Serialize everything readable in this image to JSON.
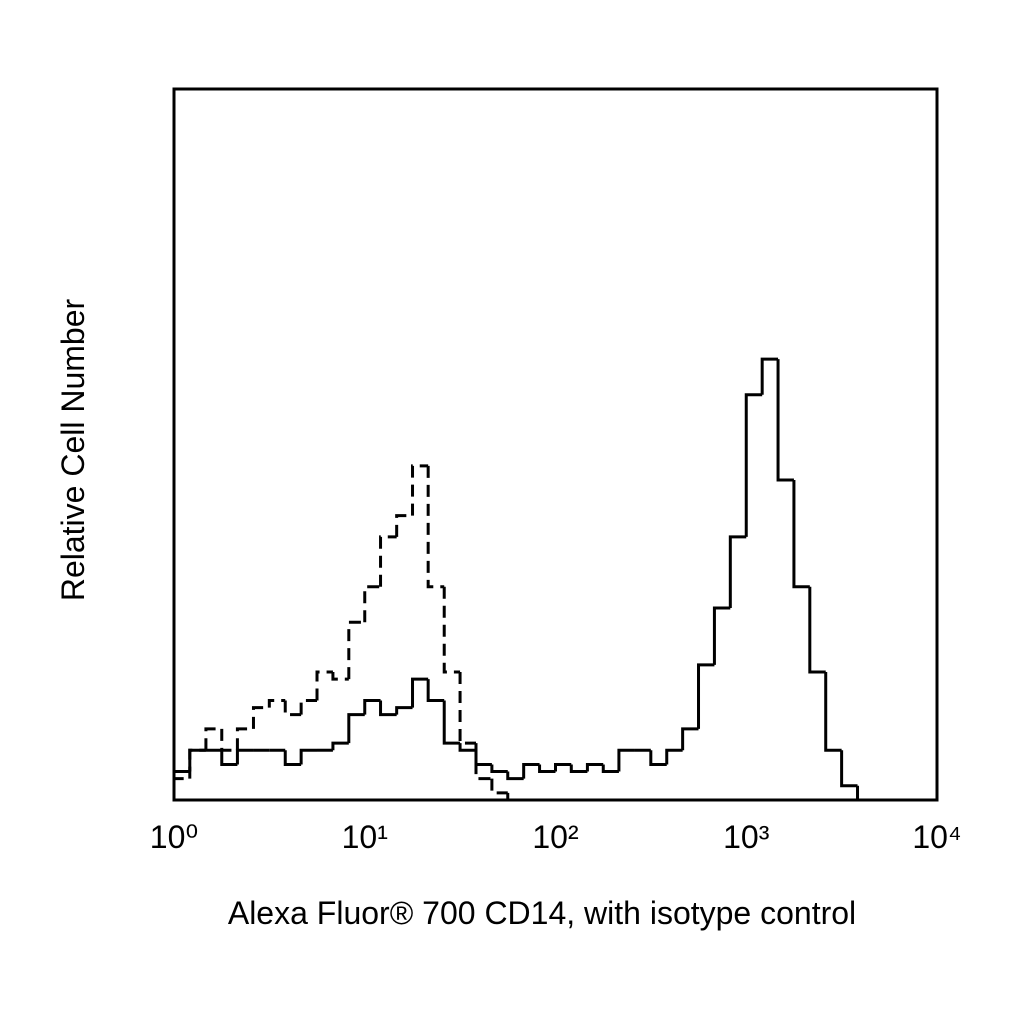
{
  "chart_data": {
    "type": "histogram",
    "xlabel": "Alexa Fluor® 700 CD14, with isotype control",
    "ylabel": "Relative Cell Number",
    "xscale": "log",
    "xlim": [
      1,
      10000
    ],
    "xticks": [
      {
        "value": 1,
        "label": "10⁰"
      },
      {
        "value": 10,
        "label": "10¹"
      },
      {
        "value": 100,
        "label": "10²"
      },
      {
        "value": 1000,
        "label": "10³"
      },
      {
        "value": 10000,
        "label": "10⁴"
      }
    ],
    "ylim": [
      0,
      100
    ],
    "bins": [
      1,
      1.21,
      1.47,
      1.78,
      2.15,
      2.61,
      3.16,
      3.83,
      4.64,
      5.62,
      6.81,
      8.25,
      10,
      12.1,
      14.7,
      17.8,
      21.5,
      26.1,
      31.6,
      38.3,
      46.4,
      56.2,
      68.1,
      82.5,
      100,
      121,
      147,
      178,
      215,
      261,
      316,
      383,
      464,
      562,
      681,
      825,
      1000,
      1212,
      1468,
      1778,
      2154,
      2610,
      3162,
      3831,
      4642,
      5623,
      6813,
      8254,
      10000
    ],
    "series": [
      {
        "color": "#000000",
        "style": "solid",
        "values": [
          4,
          7,
          7,
          5,
          7,
          7,
          7,
          5,
          7,
          7,
          8,
          12,
          14,
          12,
          13,
          17,
          14,
          8,
          7,
          5,
          4,
          3,
          5,
          4,
          5,
          4,
          5,
          4,
          7,
          7,
          5,
          7,
          10,
          19,
          27,
          37,
          57,
          62,
          45,
          30,
          18,
          7,
          2,
          0,
          0,
          0,
          0,
          0
        ]
      },
      {
        "color": "#000000",
        "style": "dashed",
        "values": [
          3,
          7,
          10,
          7,
          10,
          13,
          14,
          12,
          14,
          18,
          17,
          25,
          30,
          37,
          40,
          47,
          30,
          18,
          8,
          3,
          1,
          0,
          0,
          0,
          0,
          0,
          0,
          0,
          0,
          0,
          0,
          0,
          0,
          0,
          0,
          0,
          0,
          0,
          0,
          0,
          0,
          0,
          0,
          0,
          0,
          0,
          0,
          0
        ]
      }
    ]
  }
}
